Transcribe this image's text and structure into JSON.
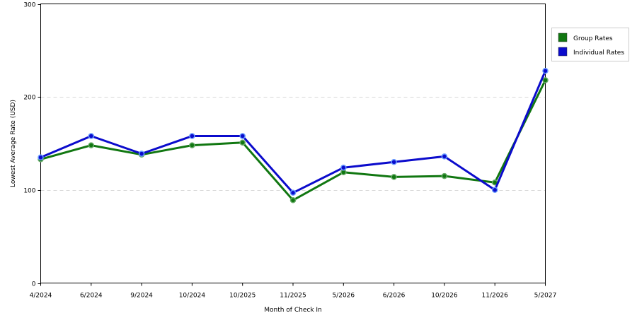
{
  "chart_data": {
    "type": "line",
    "xlabel": "Month of Check In",
    "ylabel": "Lowest Average Rate (USD)",
    "categories": [
      "4/2024",
      "6/2024",
      "9/2024",
      "10/2024",
      "10/2025",
      "11/2025",
      "5/2026",
      "6/2026",
      "10/2026",
      "11/2026",
      "5/2027"
    ],
    "ylim": [
      0,
      300
    ],
    "yticks": [
      "0",
      "100",
      "200",
      "300"
    ],
    "grid": true,
    "legend_position": "right",
    "series": [
      {
        "name": "Group Rates",
        "color": "#117711",
        "values": [
          133,
          148,
          138,
          148,
          151,
          89,
          119,
          114,
          115,
          108,
          218
        ]
      },
      {
        "name": "Individual Rates",
        "color": "#0b0bcc",
        "values": [
          135,
          158,
          139,
          158,
          158,
          97,
          124,
          130,
          136,
          100,
          228
        ]
      }
    ]
  }
}
